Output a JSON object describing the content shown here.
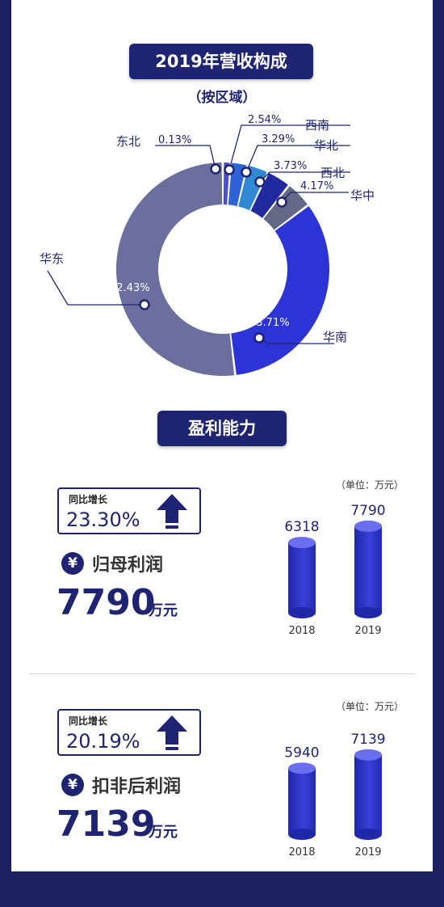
{
  "revenue": {
    "title": "2019年营收构成",
    "subtitle": "（按区域）"
  },
  "chart_data": [
    {
      "type": "pie",
      "title": "2019年营收构成",
      "subtitle": "（按区域）",
      "slices": [
        {
          "name": "东北",
          "value": 0.13,
          "label": "0.13%",
          "color": "#4a4fc8"
        },
        {
          "name": "西南",
          "value": 2.54,
          "label": "2.54%",
          "color": "#2e62d6"
        },
        {
          "name": "华北",
          "value": 3.29,
          "label": "3.29%",
          "color": "#2f8ad3"
        },
        {
          "name": "西北",
          "value": 3.73,
          "label": "3.73%",
          "color": "#2129a0"
        },
        {
          "name": "华中",
          "value": 4.17,
          "label": "4.17%",
          "color": "#636886"
        },
        {
          "name": "华南",
          "value": 33.71,
          "label": "33.71%",
          "color": "#2d34d6"
        },
        {
          "name": "华东",
          "value": 52.43,
          "label": "52.43%",
          "color": "#6b6f9d"
        }
      ]
    },
    {
      "type": "bar",
      "categories": [
        "2018",
        "2019"
      ],
      "values": [
        6318,
        7790
      ],
      "unit": "（单位：万元）"
    },
    {
      "type": "bar",
      "categories": [
        "2018",
        "2019"
      ],
      "values": [
        5940,
        7139
      ],
      "unit": "（单位：万元）"
    }
  ],
  "profit": {
    "title": "盈利能力",
    "net_profit": {
      "yoy_label": "同比增长",
      "yoy_value": "23.30%",
      "yen": "¥",
      "name": "归母利润",
      "value": "7790",
      "unit": "万元",
      "chart_unit": "（单位：万元）"
    },
    "deducted_profit": {
      "yoy_label": "同比增长",
      "yoy_value": "20.19%",
      "yen": "¥",
      "name": "扣非后利润",
      "value": "7139",
      "unit": "万元",
      "chart_unit": "（单位：万元）"
    }
  },
  "colors": {
    "navy": "#1e2472",
    "background_frame": "#1b1f5e",
    "bar_top": "#5a5fe6",
    "bar_body": "#2a30c4"
  },
  "icons": [
    "arrow-up-icon",
    "yen-icon"
  ]
}
